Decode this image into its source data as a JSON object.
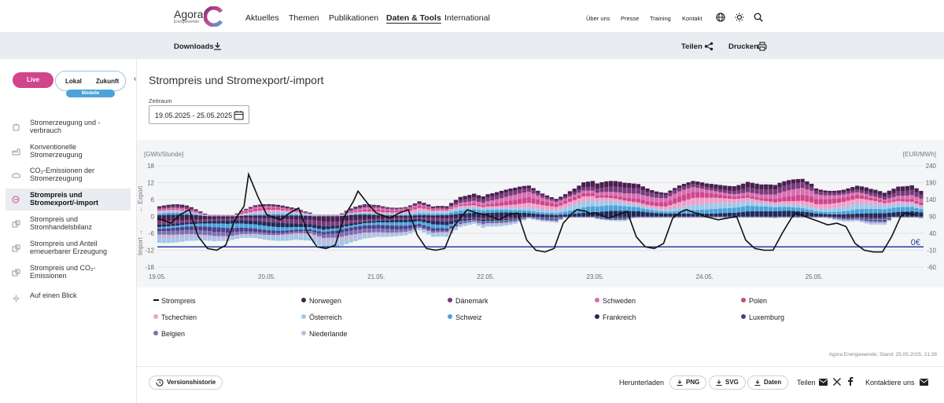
{
  "header": {
    "logo_word": "Agora",
    "logo_sub": "Energiewende",
    "nav": [
      "Aktuelles",
      "Themen",
      "Publikationen",
      "Daten & Tools",
      "International"
    ],
    "nav_right": [
      "Über uns",
      "Presse",
      "Training",
      "Kontakt"
    ]
  },
  "subbar": {
    "downloads": "Downloads",
    "share": "Teilen",
    "print": "Drucken"
  },
  "sidebar": {
    "toggle_live": "Live",
    "toggle_local": "Lokal",
    "toggle_future": "Zukunft",
    "models_badge": "Modelle",
    "items": [
      {
        "label": "Stromerzeugung und -verbrauch"
      },
      {
        "label": "Konventionelle Stromerzeugung"
      },
      {
        "label": "CO₂-Emissionen der Stromerzeugung"
      },
      {
        "label": "Strompreis und Stromexport/-import"
      },
      {
        "label": "Strompreis und Stromhandelsbilanz"
      },
      {
        "label": "Strompreis und Anteil erneuerbarer Erzeugung"
      },
      {
        "label": "Strompreis und CO₂-Emissionen"
      },
      {
        "label": "Auf einen Blick"
      }
    ]
  },
  "main": {
    "title": "Strompreis und Stromexport/-import",
    "range_label": "Zeitraum",
    "range_value": "19.05.2025 - 25.05.2025"
  },
  "chart_data": {
    "type": "bar",
    "ylabel_left": "[GWh/Stunde]",
    "ylabel_right": "[EUR/MWh]",
    "export_label": "Export",
    "import_label": "Import",
    "zero_price_label": "0€",
    "yticks_left": [
      18,
      12,
      6,
      0,
      -6,
      -12,
      -18
    ],
    "yticks_right": [
      240,
      190,
      140,
      90,
      40,
      -10,
      -60
    ],
    "ylim_left": [
      -18,
      18
    ],
    "ylim_right": [
      -60,
      240
    ],
    "xticks": [
      "19.05.",
      "20.05.",
      "21.05.",
      "22.05.",
      "23.05.",
      "24.05.",
      "25.05."
    ],
    "series_colors": {
      "Norwegen": "#4a1f4e",
      "Dänemark": "#7a3a7c",
      "Schweden": "#d76fb0",
      "Polen": "#d1458c",
      "Tschechien": "#f0a0c8",
      "Österreich": "#9fc8ea",
      "Schweiz": "#4ba3d9",
      "Frankreich": "#1f2a5a",
      "Luxemburg": "#4a3f8c",
      "Belgien": "#7d6fb0",
      "Niederlande": "#c0b8e0"
    },
    "price_color": "#111111",
    "hours_per_day": 24,
    "days": 7,
    "daily_price_profile": {
      "hours": [
        0,
        3,
        5,
        7,
        9,
        11,
        13,
        15,
        17,
        19,
        20,
        22,
        24
      ],
      "19.05.": [
        85,
        70,
        95,
        110,
        30,
        -5,
        -10,
        5,
        80,
        120,
        215,
        150,
        95
      ],
      "20.05.": [
        95,
        80,
        100,
        115,
        40,
        0,
        -5,
        5,
        90,
        135,
        165,
        130,
        100
      ],
      "21.05.": [
        100,
        85,
        100,
        110,
        35,
        -5,
        -10,
        -5,
        60,
        95,
        110,
        100,
        95
      ],
      "22.05.": [
        95,
        80,
        95,
        100,
        20,
        -10,
        -15,
        -5,
        70,
        100,
        110,
        105,
        90
      ],
      "23.05.": [
        100,
        85,
        95,
        105,
        30,
        0,
        -5,
        10,
        85,
        105,
        110,
        100,
        95
      ],
      "24.05.": [
        90,
        80,
        85,
        90,
        20,
        -5,
        -10,
        -10,
        40,
        85,
        100,
        90,
        80
      ],
      "25.05.": [
        80,
        65,
        70,
        60,
        10,
        -10,
        -15,
        -15,
        30,
        90,
        100,
        95,
        85
      ]
    },
    "net_export_gwh_profile": {
      "hours": [
        0,
        6,
        9,
        12,
        15,
        18,
        21,
        24
      ],
      "19.05.": [
        -2,
        -3,
        -4,
        -5,
        -5,
        -3,
        -2,
        -2
      ],
      "20.05.": [
        -2,
        -2,
        -3,
        -6,
        -6,
        -4,
        -2,
        -1
      ],
      "21.05.": [
        -1,
        -1,
        0,
        -3,
        -3,
        1,
        3,
        2
      ],
      "22.05.": [
        3,
        4,
        5,
        3,
        2,
        5,
        7,
        6
      ],
      "23.05.": [
        5,
        5,
        6,
        5,
        4,
        6,
        7,
        6
      ],
      "24.05.": [
        6,
        6,
        7,
        5,
        4,
        6,
        8,
        7
      ],
      "25.05.": [
        6,
        5,
        5,
        3,
        2,
        5,
        6,
        3
      ]
    }
  },
  "legend": [
    {
      "label": "Strompreis",
      "kind": "line"
    },
    {
      "label": "Norwegen",
      "color": "#4a1f4e"
    },
    {
      "label": "Dänemark",
      "color": "#7a3a7c"
    },
    {
      "label": "Schweden",
      "color": "#d76fb0"
    },
    {
      "label": "Polen",
      "color": "#d1458c"
    },
    {
      "label": "Tschechien",
      "color": "#f0a0c8"
    },
    {
      "label": "Österreich",
      "color": "#9fc8ea"
    },
    {
      "label": "Schweiz",
      "color": "#4ba3d9"
    },
    {
      "label": "Frankreich",
      "color": "#1f2a5a"
    },
    {
      "label": "Luxemburg",
      "color": "#4a3f8c"
    },
    {
      "label": "Belgien",
      "color": "#7d6fb0"
    },
    {
      "label": "Niederlande",
      "color": "#c0b8e0"
    }
  ],
  "source": "Agora Energiewende; Stand: 25.05.2025, 21:28",
  "footer": {
    "history": "Versionshistorie",
    "download_label": "Herunterladen",
    "png": "PNG",
    "svg": "SVG",
    "data": "Daten",
    "share": "Teilen",
    "contact": "Kontaktiere uns"
  }
}
